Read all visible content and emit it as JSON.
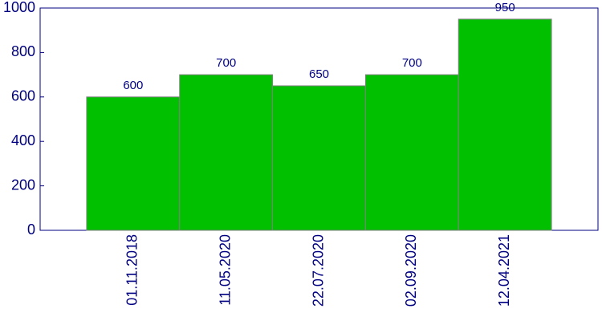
{
  "chart_data": {
    "type": "bar",
    "categories": [
      "01.11.2018",
      "11.05.2020",
      "22.07.2020",
      "02.09.2020",
      "12.04.2021"
    ],
    "values": [
      600,
      700,
      650,
      700,
      950
    ],
    "color": "#00c000",
    "ylim": [
      0,
      1000
    ],
    "yticks": [
      0,
      200,
      400,
      600,
      800,
      1000
    ],
    "grid": false
  }
}
